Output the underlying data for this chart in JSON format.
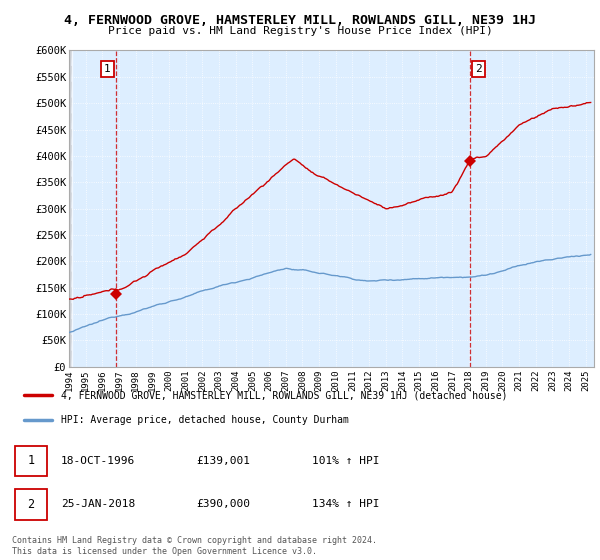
{
  "title": "4, FERNWOOD GROVE, HAMSTERLEY MILL, ROWLANDS GILL, NE39 1HJ",
  "subtitle": "Price paid vs. HM Land Registry's House Price Index (HPI)",
  "legend_label_red": "4, FERNWOOD GROVE, HAMSTERLEY MILL, ROWLANDS GILL, NE39 1HJ (detached house)",
  "legend_label_blue": "HPI: Average price, detached house, County Durham",
  "transaction1_date": "18-OCT-1996",
  "transaction1_price": "£139,001",
  "transaction1_hpi": "101% ↑ HPI",
  "transaction2_date": "25-JAN-2018",
  "transaction2_price": "£390,000",
  "transaction2_hpi": "134% ↑ HPI",
  "footer": "Contains HM Land Registry data © Crown copyright and database right 2024.\nThis data is licensed under the Open Government Licence v3.0.",
  "ylim": [
    0,
    600000
  ],
  "yticks": [
    0,
    50000,
    100000,
    150000,
    200000,
    250000,
    300000,
    350000,
    400000,
    450000,
    500000,
    550000,
    600000
  ],
  "ytick_labels": [
    "£0",
    "£50K",
    "£100K",
    "£150K",
    "£200K",
    "£250K",
    "£300K",
    "£350K",
    "£400K",
    "£450K",
    "£500K",
    "£550K",
    "£600K"
  ],
  "red_color": "#cc0000",
  "blue_color": "#6699cc",
  "chart_bg": "#ddeeff",
  "marker1_x": 1996.8,
  "marker1_y": 139001,
  "marker2_x": 2018.07,
  "marker2_y": 390000,
  "xmin": 1994,
  "xmax": 2025.5
}
